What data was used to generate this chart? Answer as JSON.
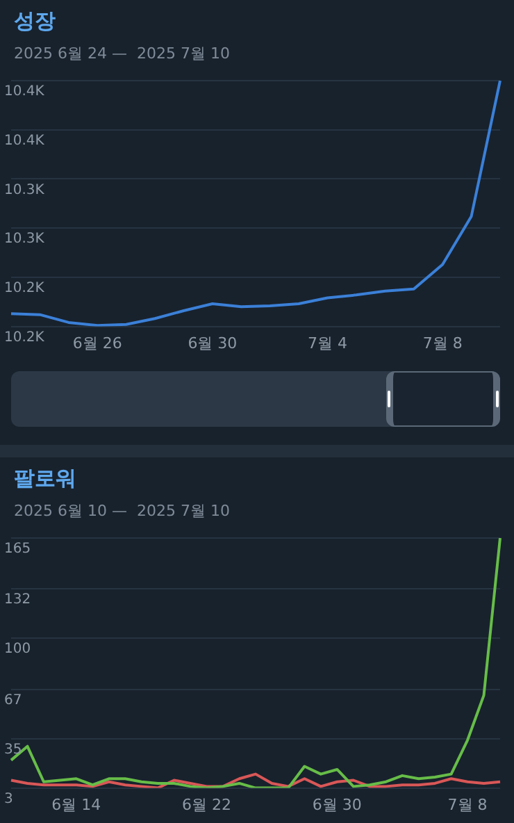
{
  "chart_data": [
    {
      "type": "line",
      "title": "성장",
      "subtitle": "2025 6월 24 —  2025 7월 10",
      "categories": [
        null,
        null,
        null,
        "6월 26",
        null,
        null,
        null,
        "6월 30",
        null,
        null,
        null,
        "7월 4",
        null,
        null,
        null,
        "7월 8",
        null,
        null
      ],
      "series": [
        {
          "color": "#3b80d8",
          "values": [
            10203,
            10202,
            10194,
            10191,
            10192,
            10198,
            10206,
            10213,
            10210,
            10211,
            10213,
            10219,
            10222,
            10226,
            10228,
            10253,
            10302,
            10440
          ]
        }
      ],
      "ylim": [
        10190,
        10440
      ],
      "yticks": [
        {
          "value": 10190,
          "label": "10.2K"
        },
        {
          "value": 10240,
          "label": "10.2K"
        },
        {
          "value": 10290,
          "label": "10.3K"
        },
        {
          "value": 10340,
          "label": "10.3K"
        },
        {
          "value": 10390,
          "label": "10.4K"
        },
        {
          "value": 10440,
          "label": "10.4K"
        }
      ],
      "grid": "y",
      "marker": "none"
    },
    {
      "type": "line",
      "title": "팔로워",
      "subtitle": "2025 6월 10 —  2025 7월 10",
      "categories": [
        null,
        null,
        null,
        null,
        "6월 14",
        null,
        null,
        null,
        null,
        null,
        null,
        null,
        "6월 22",
        null,
        null,
        null,
        null,
        null,
        null,
        null,
        "6월 30",
        null,
        null,
        null,
        null,
        null,
        null,
        null,
        "7월 8",
        null,
        null
      ],
      "series": [
        {
          "color": "#67bd48",
          "values": [
            21,
            30,
            7,
            8,
            9,
            5,
            9,
            9,
            7,
            6,
            6,
            4,
            3,
            4,
            6,
            3,
            3,
            3,
            17,
            12,
            15,
            4,
            5,
            7,
            11,
            9,
            10,
            12,
            34,
            63,
            165
          ]
        },
        {
          "color": "#d95757",
          "values": [
            8,
            6,
            5,
            5,
            5,
            4,
            7,
            5,
            4,
            3,
            8,
            6,
            4,
            4,
            9,
            12,
            6,
            4,
            9,
            4,
            7,
            8,
            4,
            4,
            5,
            5,
            6,
            9,
            7,
            6,
            7
          ]
        }
      ],
      "ylim": [
        3,
        165
      ],
      "yticks": [
        3,
        35,
        67,
        100,
        132,
        165
      ],
      "grid": "y",
      "marker": "none"
    }
  ]
}
